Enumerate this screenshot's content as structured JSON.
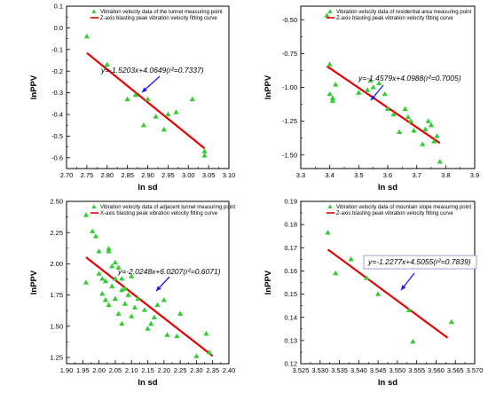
{
  "chart_data": [
    {
      "type": "scatter",
      "xlabel": "ln sd",
      "ylabel": "lnPPV",
      "xlim": [
        2.7,
        3.1
      ],
      "ylim": [
        -0.65,
        0.1
      ],
      "xticks": [
        "2.70",
        "2.75",
        "2.80",
        "2.85",
        "2.90",
        "2.95",
        "3.00",
        "3.05",
        "3.10"
      ],
      "yticks": [
        "-0.6",
        "-0.5",
        "-0.4",
        "-0.3",
        "-0.2",
        "-0.1",
        "0.0",
        "0.1"
      ],
      "legend": [
        "Vibration velocity data of the tunnel measuring point",
        "Z-axis blasting peak vibration velocity fitting curve"
      ],
      "legend_position": "top-right",
      "series": [
        {
          "name": "Vibration velocity data of the tunnel measuring point",
          "kind": "points",
          "x": [
            2.75,
            2.8,
            2.85,
            2.87,
            2.89,
            2.9,
            2.92,
            2.94,
            2.95,
            2.97,
            3.01,
            3.04,
            3.04
          ],
          "y": [
            -0.04,
            -0.17,
            -0.33,
            -0.31,
            -0.45,
            -0.33,
            -0.41,
            -0.47,
            -0.4,
            -0.39,
            -0.33,
            -0.57,
            -0.59
          ]
        },
        {
          "name": "Z-axis blasting peak vibration velocity fitting curve",
          "kind": "line",
          "slope": -1.5203,
          "intercept": 4.0649,
          "x_range": [
            2.75,
            3.04
          ]
        }
      ],
      "annotation": "y=-1.5203x+4.0649(r²=0.7337)",
      "annotation_boxed": false
    },
    {
      "type": "scatter",
      "xlabel": "ln sd",
      "ylabel": "lnPPV",
      "xlim": [
        3.3,
        3.9
      ],
      "ylim": [
        -1.6,
        -0.4
      ],
      "xticks": [
        "3.3",
        "3.4",
        "3.5",
        "3.6",
        "3.7",
        "3.8",
        "3.9"
      ],
      "yticks": [
        "-1.50",
        "-1.25",
        "-1.00",
        "-0.75",
        "-0.50"
      ],
      "legend": [
        "Vibration velocity data of  residential area measuring point",
        "Z-axis blasting peak vibration velocity fitting curve"
      ],
      "legend_position": "top-right",
      "series": [
        {
          "name": "Vibration velocity data of  residential area measuring point",
          "kind": "points",
          "x": [
            3.39,
            3.4,
            3.4,
            3.41,
            3.41,
            3.42,
            3.5,
            3.53,
            3.54,
            3.55,
            3.57,
            3.59,
            3.6,
            3.62,
            3.64,
            3.66,
            3.67,
            3.68,
            3.69,
            3.72,
            3.73,
            3.74,
            3.75,
            3.76,
            3.77,
            3.78
          ],
          "y": [
            -0.47,
            -0.83,
            -1.05,
            -1.08,
            -1.1,
            -0.98,
            -1.04,
            -1.02,
            -0.95,
            -1.0,
            -0.97,
            -1.05,
            -1.16,
            -1.2,
            -1.33,
            -1.16,
            -1.22,
            -1.25,
            -1.32,
            -1.42,
            -1.31,
            -1.25,
            -1.28,
            -1.4,
            -1.36,
            -1.55
          ]
        },
        {
          "name": "Z-axis blasting peak vibration velocity fitting curve",
          "kind": "line",
          "slope": -1.4579,
          "intercept": 4.0988,
          "x_range": [
            3.39,
            3.78
          ]
        }
      ],
      "annotation": "y=-1.4579x+4.0988(r²=0.7005)",
      "annotation_boxed": false
    },
    {
      "type": "scatter",
      "xlabel": "ln sd",
      "ylabel": "lnPPV",
      "xlim": [
        1.9,
        2.4
      ],
      "ylim": [
        1.2,
        2.5
      ],
      "xticks": [
        "1.90",
        "1.95",
        "2.00",
        "2.05",
        "2.10",
        "2.15",
        "2.20",
        "2.25",
        "2.30",
        "2.35",
        "2.40"
      ],
      "yticks": [
        "1.25",
        "1.50",
        "1.75",
        "2.00",
        "2.25",
        "2.50"
      ],
      "legend": [
        "Vibration velocity data of  adjacent tunnel measuring point",
        "X-axis blasting peak vibration velocity fitting curve"
      ],
      "legend_position": "top-right",
      "series": [
        {
          "name": "Vibration velocity data of  adjacent tunnel measuring point",
          "kind": "points",
          "x": [
            1.96,
            1.96,
            1.98,
            1.99,
            2.0,
            2.0,
            2.01,
            2.01,
            2.02,
            2.02,
            2.03,
            2.03,
            2.03,
            2.04,
            2.04,
            2.05,
            2.05,
            2.05,
            2.06,
            2.06,
            2.07,
            2.07,
            2.07,
            2.08,
            2.08,
            2.09,
            2.1,
            2.1,
            2.11,
            2.12,
            2.14,
            2.15,
            2.16,
            2.17,
            2.18,
            2.2,
            2.21,
            2.24,
            2.25,
            2.3,
            2.33,
            2.34
          ],
          "y": [
            2.39,
            1.85,
            2.26,
            2.22,
            2.1,
            1.92,
            1.88,
            1.76,
            1.86,
            1.71,
            2.12,
            2.1,
            1.67,
            1.98,
            1.82,
            2.01,
            1.88,
            1.72,
            1.97,
            1.6,
            1.88,
            1.79,
            1.52,
            1.8,
            1.68,
            1.75,
            1.9,
            1.58,
            1.65,
            1.72,
            1.63,
            1.48,
            1.52,
            1.57,
            1.67,
            1.71,
            1.43,
            1.42,
            1.6,
            1.26,
            1.44,
            1.29
          ]
        },
        {
          "name": "X-axis blasting peak vibration velocity fitting curve",
          "kind": "line",
          "slope": -2.0248,
          "intercept": 6.0207,
          "x_range": [
            1.96,
            2.35
          ]
        }
      ],
      "annotation": "y=-2.0248x+6.0207(r²=0.6071)",
      "annotation_boxed": false
    },
    {
      "type": "scatter",
      "xlabel": "ln sd",
      "ylabel": "lnPPV",
      "xlim": [
        3.525,
        3.57
      ],
      "ylim": [
        0.12,
        0.19
      ],
      "xticks": [
        "3.525",
        "3.530",
        "3.535",
        "3.540",
        "3.545",
        "3.550",
        "3.555",
        "3.560",
        "3.565",
        "3.570"
      ],
      "yticks": [
        "0.12",
        "0.13",
        "0.14",
        "0.15",
        "0.16",
        "0.17",
        "0.18",
        "0.19"
      ],
      "legend": [
        "Vibration velocity data of  mountain slope measuring point",
        "Z-axis blasting peak vibration velocity fitting curve"
      ],
      "legend_position": "top-right",
      "series": [
        {
          "name": "Vibration velocity data of  mountain slope measuring point",
          "kind": "points",
          "x": [
            3.532,
            3.534,
            3.538,
            3.542,
            3.545,
            3.553,
            3.554,
            3.564
          ],
          "y": [
            0.1765,
            0.159,
            0.165,
            0.157,
            0.15,
            0.143,
            0.1295,
            0.138
          ]
        },
        {
          "name": "Z-axis blasting peak vibration velocity fitting curve",
          "kind": "line",
          "slope": -1.2277,
          "intercept": 4.5055,
          "x_range": [
            3.532,
            3.563
          ]
        }
      ],
      "annotation": "y=-1.2277x+4.5055(r²=0.7839)",
      "annotation_boxed": true
    }
  ],
  "colors": {
    "points": "#33cc33",
    "line": "#e60000",
    "arrow": "#1a1aff",
    "frame": "#000000",
    "eq_box": "#8888cc"
  }
}
